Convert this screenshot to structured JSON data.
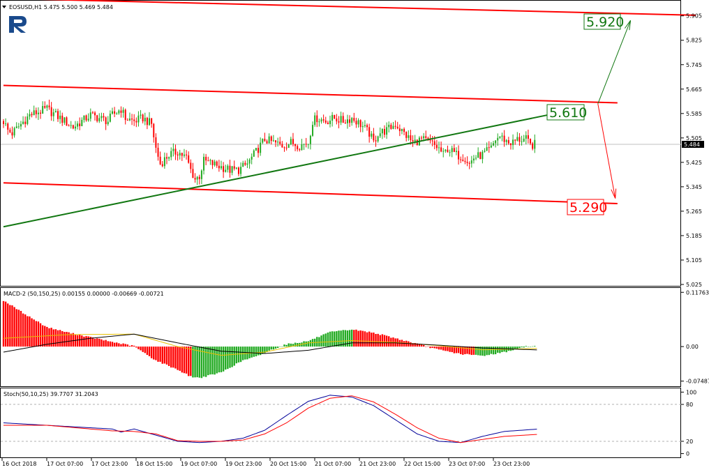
{
  "header": {
    "symbol_line": "EOSUSD,H1  5.475 5.500 5.469 5.484"
  },
  "logo": {
    "name": "R-logo-icon",
    "color": "#1a4a8c"
  },
  "colors": {
    "bull": "#22aa22",
    "bear": "#ff0000",
    "channel": "#ff0000",
    "trend": "#117711",
    "target_up": "#117711",
    "target_down": "#ff0000",
    "macd_pos": "#ff0000",
    "macd_neg": "#22aa22",
    "stoch_main": "#000099",
    "stoch_signal": "#ff0000"
  },
  "chart_data": [
    {
      "type": "candlestick",
      "symbol": "EOSUSD",
      "timeframe": "H1",
      "ylim": [
        5.025,
        5.95
      ],
      "y_ticks": [
        "5.905",
        "5.825",
        "5.745",
        "5.665",
        "5.585",
        "5.505",
        "5.425",
        "5.345",
        "5.265",
        "5.185",
        "5.105",
        "5.025"
      ],
      "current_price": "5.484",
      "x_ticks": [
        "16 Oct 2018",
        "17 Oct 07:00",
        "17 Oct 23:00",
        "18 Oct 15:00",
        "19 Oct 07:00",
        "19 Oct 23:00",
        "20 Oct 15:00",
        "21 Oct 07:00",
        "21 Oct 23:00",
        "22 Oct 15:00",
        "23 Oct 07:00",
        "23 Oct 23:00"
      ],
      "close_path": [
        [
          0,
          5.56
        ],
        [
          2,
          5.53
        ],
        [
          4,
          5.52
        ],
        [
          8,
          5.55
        ],
        [
          12,
          5.58
        ],
        [
          16,
          5.59
        ],
        [
          20,
          5.6
        ],
        [
          24,
          5.58
        ],
        [
          28,
          5.56
        ],
        [
          32,
          5.54
        ],
        [
          36,
          5.56
        ],
        [
          40,
          5.58
        ],
        [
          44,
          5.57
        ],
        [
          48,
          5.56
        ],
        [
          50,
          5.58
        ],
        [
          52,
          5.59
        ],
        [
          54,
          5.6
        ],
        [
          56,
          5.57
        ],
        [
          60,
          5.56
        ],
        [
          64,
          5.57
        ],
        [
          68,
          5.55
        ],
        [
          70,
          5.47
        ],
        [
          72,
          5.42
        ],
        [
          76,
          5.45
        ],
        [
          80,
          5.46
        ],
        [
          84,
          5.44
        ],
        [
          86,
          5.4
        ],
        [
          88,
          5.37
        ],
        [
          90,
          5.38
        ],
        [
          92,
          5.43
        ],
        [
          96,
          5.42
        ],
        [
          100,
          5.41
        ],
        [
          104,
          5.4
        ],
        [
          108,
          5.4
        ],
        [
          112,
          5.42
        ],
        [
          116,
          5.46
        ],
        [
          120,
          5.5
        ],
        [
          124,
          5.49
        ],
        [
          128,
          5.48
        ],
        [
          132,
          5.49
        ],
        [
          136,
          5.48
        ],
        [
          140,
          5.49
        ],
        [
          142,
          5.56
        ],
        [
          144,
          5.57
        ],
        [
          148,
          5.56
        ],
        [
          152,
          5.57
        ],
        [
          156,
          5.56
        ],
        [
          160,
          5.57
        ],
        [
          164,
          5.55
        ],
        [
          168,
          5.52
        ],
        [
          170,
          5.49
        ],
        [
          172,
          5.52
        ],
        [
          176,
          5.53
        ],
        [
          180,
          5.55
        ],
        [
          184,
          5.52
        ],
        [
          188,
          5.49
        ],
        [
          192,
          5.5
        ],
        [
          196,
          5.49
        ],
        [
          198,
          5.48
        ],
        [
          200,
          5.47
        ],
        [
          202,
          5.45
        ],
        [
          204,
          5.47
        ],
        [
          208,
          5.45
        ],
        [
          212,
          5.44
        ],
        [
          214,
          5.42
        ],
        [
          216,
          5.44
        ],
        [
          220,
          5.45
        ],
        [
          224,
          5.47
        ],
        [
          226,
          5.5
        ],
        [
          228,
          5.51
        ],
        [
          232,
          5.49
        ],
        [
          234,
          5.49
        ],
        [
          236,
          5.5
        ],
        [
          240,
          5.5
        ],
        [
          242,
          5.48
        ],
        [
          244,
          5.484
        ]
      ],
      "channel_lines": [
        {
          "name": "channel-top",
          "from": [
            0,
            5.962
          ],
          "to": [
            318,
            5.907
          ]
        },
        {
          "name": "channel-mid",
          "from": [
            0,
            5.677
          ],
          "to": [
            282,
            5.62
          ]
        },
        {
          "name": "channel-bottom",
          "from": [
            0,
            5.358
          ],
          "to": [
            282,
            5.29
          ]
        }
      ],
      "trend_line": {
        "from": [
          0,
          5.214
        ],
        "to": [
          256,
          5.589
        ]
      },
      "forecast": {
        "up": {
          "value": "5.920",
          "from": [
            273,
            5.617
          ],
          "to": [
            288,
            5.89
          ]
        },
        "down": {
          "value": "5.290",
          "from": [
            273,
            5.617
          ],
          "to": [
            281,
            5.307
          ]
        },
        "mid": {
          "value": "5.610"
        }
      }
    },
    {
      "type": "histogram",
      "name": "MACD",
      "header": "MACD-2 (50,150,25) 0.00155 0.00000 -0.00669 -0.00721",
      "ylim": [
        -0.0845,
        0.1256
      ],
      "y_ticks": [
        "0.11763",
        "0.00",
        "-0.07487"
      ],
      "hist_path": [
        [
          0,
          0.1
        ],
        [
          10,
          0.07
        ],
        [
          20,
          0.042
        ],
        [
          30,
          0.03
        ],
        [
          40,
          0.02
        ],
        [
          50,
          0.01
        ],
        [
          60,
          0.001
        ],
        [
          64,
          -0.012
        ],
        [
          70,
          -0.03
        ],
        [
          80,
          -0.05
        ],
        [
          86,
          -0.065
        ],
        [
          90,
          -0.068
        ],
        [
          100,
          -0.056
        ],
        [
          110,
          -0.03
        ],
        [
          116,
          -0.022
        ],
        [
          124,
          -0.005
        ],
        [
          130,
          0.005
        ],
        [
          140,
          0.012
        ],
        [
          150,
          0.031
        ],
        [
          160,
          0.037
        ],
        [
          170,
          0.03
        ],
        [
          180,
          0.018
        ],
        [
          190,
          0.006
        ],
        [
          200,
          -0.007
        ],
        [
          210,
          -0.016
        ],
        [
          220,
          -0.02
        ],
        [
          230,
          -0.012
        ],
        [
          240,
          0.0
        ],
        [
          245,
          0.00155
        ]
      ],
      "hist_color_segments": [
        {
          "from": 0,
          "to": 86,
          "colour": "red"
        },
        {
          "from": 87,
          "to": 126,
          "colour": "green"
        },
        {
          "from": 127,
          "to": 160,
          "colour": "green"
        },
        {
          "from": 161,
          "to": 216,
          "colour": "red"
        },
        {
          "from": 217,
          "to": 245,
          "colour": "green"
        }
      ],
      "signal_path": [
        [
          0,
          0.018
        ],
        [
          30,
          0.026
        ],
        [
          60,
          0.027
        ],
        [
          80,
          0.0
        ],
        [
          100,
          -0.019
        ],
        [
          120,
          -0.012
        ],
        [
          140,
          0.008
        ],
        [
          160,
          0.013
        ],
        [
          180,
          0.009
        ],
        [
          200,
          0.002
        ],
        [
          220,
          -0.007
        ],
        [
          245,
          -0.004
        ]
      ],
      "black_path": [
        [
          0,
          -0.012
        ],
        [
          20,
          0.005
        ],
        [
          40,
          0.018
        ],
        [
          60,
          0.027
        ],
        [
          80,
          0.008
        ],
        [
          100,
          -0.01
        ],
        [
          120,
          -0.015
        ],
        [
          140,
          -0.008
        ],
        [
          160,
          0.008
        ],
        [
          180,
          0.008
        ],
        [
          200,
          0.003
        ],
        [
          220,
          -0.003
        ],
        [
          245,
          -0.0072
        ]
      ]
    },
    {
      "type": "line",
      "name": "Stochastic",
      "header": "Stoch(50,10,25) 39.7707 31.2043",
      "ylim": [
        -5,
        105
      ],
      "y_ticks": [
        "100",
        "80",
        "20",
        "0"
      ],
      "levels": [
        80,
        20
      ],
      "series": [
        {
          "role": "main",
          "values": [
            [
              0,
              50
            ],
            [
              20,
              46
            ],
            [
              40,
              42
            ],
            [
              50,
              40
            ],
            [
              54,
              35
            ],
            [
              60,
              40
            ],
            [
              64,
              36
            ],
            [
              70,
              30
            ],
            [
              80,
              20
            ],
            [
              90,
              18
            ],
            [
              100,
              20
            ],
            [
              110,
              25
            ],
            [
              120,
              38
            ],
            [
              130,
              62
            ],
            [
              140,
              85
            ],
            [
              150,
              95
            ],
            [
              160,
              92
            ],
            [
              170,
              78
            ],
            [
              180,
              55
            ],
            [
              190,
              32
            ],
            [
              200,
              20
            ],
            [
              210,
              18
            ],
            [
              220,
              28
            ],
            [
              230,
              36
            ],
            [
              245,
              39.77
            ]
          ]
        },
        {
          "role": "signal",
          "values": [
            [
              0,
              46
            ],
            [
              20,
              46
            ],
            [
              40,
              40
            ],
            [
              50,
              37
            ],
            [
              60,
              36
            ],
            [
              70,
              32
            ],
            [
              80,
              21
            ],
            [
              90,
              20
            ],
            [
              100,
              20
            ],
            [
              110,
              22
            ],
            [
              120,
              32
            ],
            [
              130,
              50
            ],
            [
              140,
              74
            ],
            [
              150,
              90
            ],
            [
              160,
              94
            ],
            [
              170,
              84
            ],
            [
              180,
              64
            ],
            [
              190,
              42
            ],
            [
              200,
              25
            ],
            [
              210,
              18
            ],
            [
              220,
              23
            ],
            [
              230,
              28
            ],
            [
              245,
              31.2
            ]
          ]
        }
      ]
    }
  ]
}
